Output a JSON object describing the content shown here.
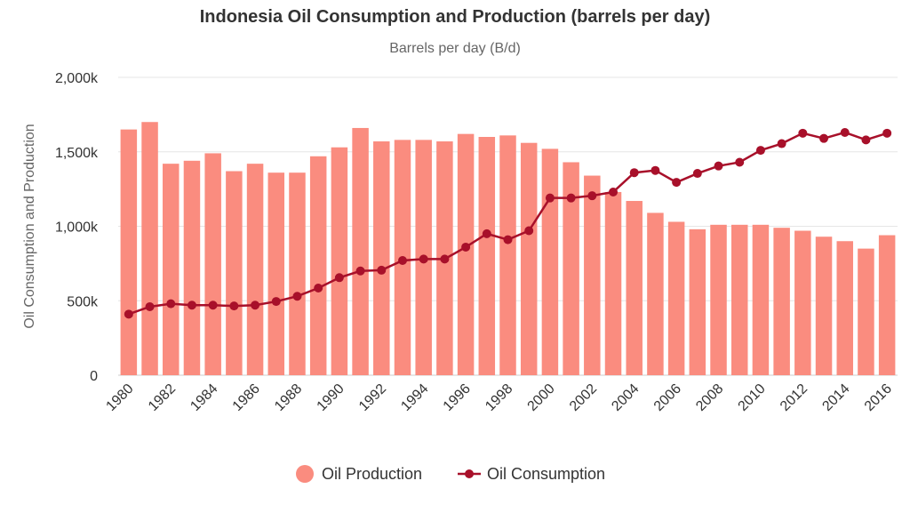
{
  "chart_data": {
    "type": "bar",
    "title": "Indonesia Oil Consumption and Production (barrels per day)",
    "subtitle": "Barrels per day (B/d)",
    "xlabel": "",
    "ylabel": "Oil Consumption and Production",
    "ylim": [
      0,
      2000000
    ],
    "y_ticks": [
      "0",
      "500k",
      "1,000k",
      "1,500k",
      "2,000k"
    ],
    "grid": true,
    "legend": "bottom-center",
    "categories": [
      "1980",
      "1981",
      "1982",
      "1983",
      "1984",
      "1985",
      "1986",
      "1987",
      "1988",
      "1989",
      "1990",
      "1991",
      "1992",
      "1993",
      "1994",
      "1995",
      "1996",
      "1997",
      "1998",
      "1999",
      "2000",
      "2001",
      "2002",
      "2003",
      "2004",
      "2005",
      "2006",
      "2007",
      "2008",
      "2009",
      "2010",
      "2011",
      "2012",
      "2013",
      "2014",
      "2015",
      "2016"
    ],
    "x_tick_labels": [
      "1980",
      "1982",
      "1984",
      "1986",
      "1988",
      "1990",
      "1992",
      "1994",
      "1996",
      "1998",
      "2000",
      "2002",
      "2004",
      "2006",
      "2008",
      "2010",
      "2012",
      "2014",
      "2016"
    ],
    "series": [
      {
        "name": "Oil Production",
        "type": "bar",
        "color": "#fa8c7f",
        "values": [
          1650000,
          1700000,
          1420000,
          1440000,
          1490000,
          1370000,
          1420000,
          1360000,
          1360000,
          1470000,
          1530000,
          1660000,
          1570000,
          1580000,
          1580000,
          1570000,
          1620000,
          1600000,
          1610000,
          1560000,
          1520000,
          1430000,
          1340000,
          1230000,
          1170000,
          1090000,
          1030000,
          980000,
          1010000,
          1010000,
          1010000,
          990000,
          970000,
          930000,
          900000,
          850000,
          940000
        ]
      },
      {
        "name": "Oil Consumption",
        "type": "line",
        "color": "#a8102a",
        "values": [
          410000,
          460000,
          480000,
          470000,
          470000,
          465000,
          470000,
          495000,
          530000,
          585000,
          655000,
          700000,
          705000,
          770000,
          780000,
          780000,
          860000,
          950000,
          910000,
          970000,
          1190000,
          1190000,
          1205000,
          1230000,
          1360000,
          1375000,
          1295000,
          1355000,
          1405000,
          1430000,
          1510000,
          1555000,
          1625000,
          1590000,
          1630000,
          1580000,
          1625000
        ]
      }
    ]
  }
}
